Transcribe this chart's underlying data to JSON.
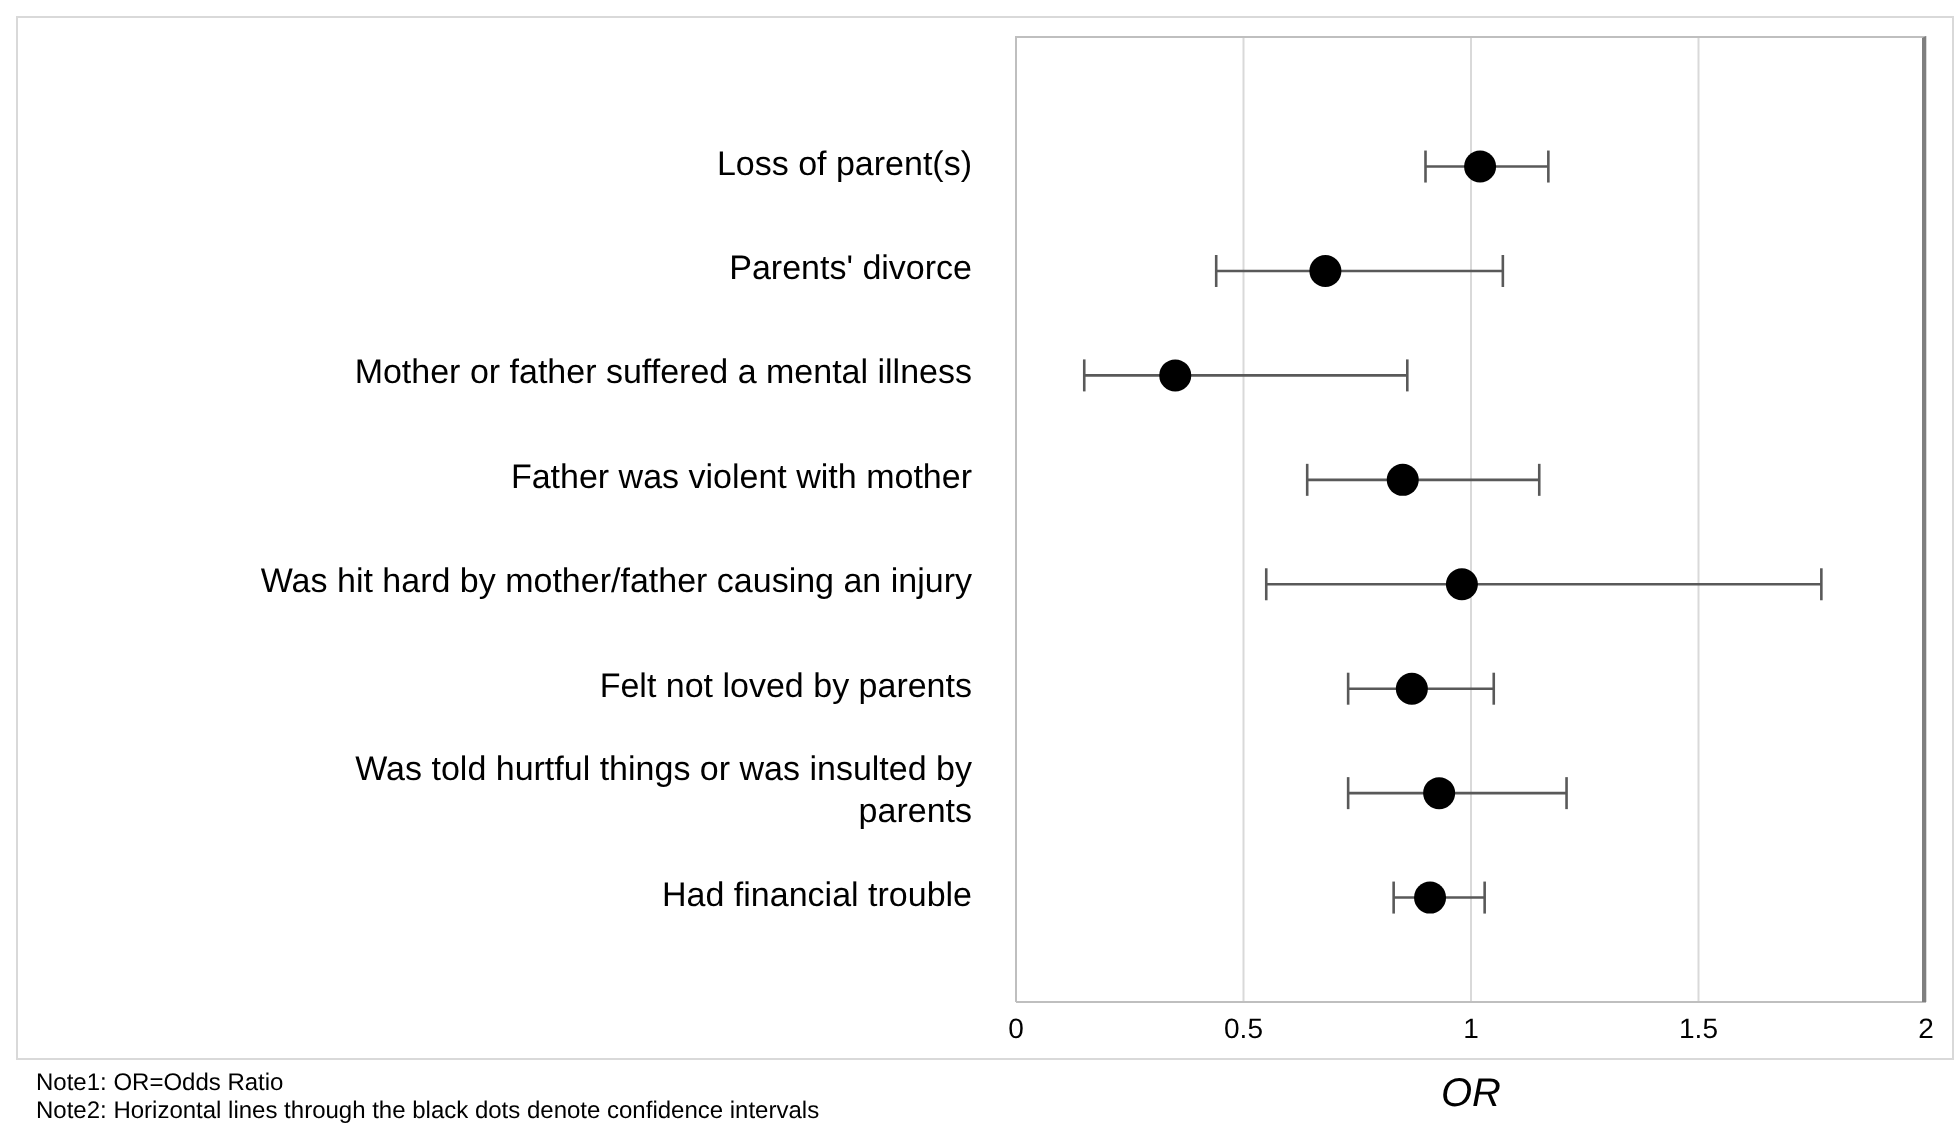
{
  "chart_data": {
    "type": "scatter",
    "orientation": "horizontal",
    "categories": [
      "Loss of parent(s) ",
      "Parents' divorce",
      "Mother or father suffered a mental illness",
      "Father was violent with mother",
      "Was hit hard by mother/father causing an injury ",
      "Felt not loved by parents ",
      "Was told hurtful things or was insulted by parents",
      "Had financial trouble"
    ],
    "values": [
      1.02,
      0.68,
      0.35,
      0.85,
      0.98,
      0.87,
      0.93,
      0.91
    ],
    "errors": [
      [
        0.9,
        1.17
      ],
      [
        0.44,
        1.07
      ],
      [
        0.15,
        0.86
      ],
      [
        0.64,
        1.15
      ],
      [
        0.55,
        1.77
      ],
      [
        0.73,
        1.05
      ],
      [
        0.73,
        1.21
      ],
      [
        0.83,
        1.03
      ]
    ],
    "color": "#000000",
    "marker": "circle",
    "xlim": [
      0,
      2
    ],
    "xticks": [
      0,
      0.5,
      1,
      1.5,
      2
    ],
    "grid": "x",
    "xlabel": "OR",
    "annotations": [
      "Note1: OR=Odds Ratio",
      "Note2: Horizontal lines through the black dots denote confidence intervals"
    ]
  }
}
